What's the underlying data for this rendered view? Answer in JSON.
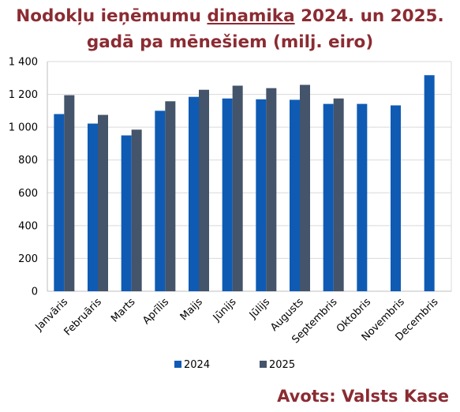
{
  "title": {
    "line1_before": "Nodokļu ieņēmumu ",
    "line1_emph": "dinamika",
    "line1_after": " 2024. un 2025.",
    "line2": "gadā pa mēnešiem (milj. eiro)"
  },
  "source": "Avots: Valsts Kase",
  "colors": {
    "series_2024": "#0f5bb4",
    "series_2025": "#44546a",
    "grid": "#d9d9d9",
    "title": "#8b2b32"
  },
  "chart_data": {
    "type": "bar",
    "categories": [
      "Janvāris",
      "Februāris",
      "Marts",
      "Aprīlis",
      "Maijs",
      "Jūnijs",
      "Jūlijs",
      "Augusts",
      "Septembris",
      "Oktobris",
      "Novembris",
      "Decembris"
    ],
    "series": [
      {
        "name": "2024",
        "values": [
          1080,
          1022,
          950,
          1100,
          1185,
          1175,
          1170,
          1167,
          1142,
          1142,
          1133,
          1317
        ]
      },
      {
        "name": "2025",
        "values": [
          1195,
          1075,
          985,
          1158,
          1228,
          1253,
          1238,
          1258,
          1175,
          null,
          null,
          null
        ]
      }
    ],
    "ylim": [
      0,
      1400
    ],
    "yticks": [
      0,
      200,
      400,
      600,
      800,
      1000,
      1200,
      1400
    ],
    "ytick_labels": [
      "0",
      "200",
      "400",
      "600",
      "800",
      "1 000",
      "1 200",
      "1 400"
    ],
    "grid": true,
    "legend": "bottom"
  }
}
